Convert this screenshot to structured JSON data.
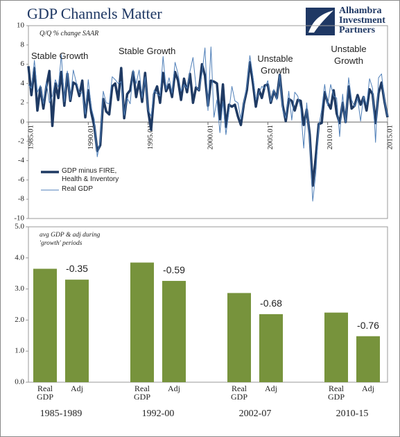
{
  "header": {
    "title": "GDP Channels Matter",
    "logo": "Alhambra Investment Partners"
  },
  "chart_data": [
    {
      "type": "line",
      "annotations": [
        "Q/Q % change SAAR",
        "Stable Growth",
        "Stable Growth",
        "Unstable Growth",
        "Unstable Growth"
      ],
      "x": [
        1985,
        1985.25,
        1985.5,
        1985.75,
        1986,
        1986.25,
        1986.5,
        1986.75,
        1987,
        1987.25,
        1987.5,
        1987.75,
        1988,
        1988.25,
        1988.5,
        1988.75,
        1989,
        1989.25,
        1989.5,
        1989.75,
        1990,
        1990.25,
        1990.5,
        1990.75,
        1991,
        1991.25,
        1991.5,
        1991.75,
        1992,
        1992.25,
        1992.5,
        1992.75,
        1993,
        1993.25,
        1993.5,
        1993.75,
        1994,
        1994.25,
        1994.5,
        1994.75,
        1995,
        1995.25,
        1995.5,
        1995.75,
        1996,
        1996.25,
        1996.5,
        1996.75,
        1997,
        1997.25,
        1997.5,
        1997.75,
        1998,
        1998.25,
        1998.5,
        1998.75,
        1999,
        1999.25,
        1999.5,
        1999.75,
        2000,
        2000.25,
        2000.5,
        2000.75,
        2001,
        2001.25,
        2001.5,
        2001.75,
        2002,
        2002.25,
        2002.5,
        2002.75,
        2003,
        2003.25,
        2003.5,
        2003.75,
        2004,
        2004.25,
        2004.5,
        2004.75,
        2005,
        2005.25,
        2005.5,
        2005.75,
        2006,
        2006.25,
        2006.5,
        2006.75,
        2007,
        2007.25,
        2007.5,
        2007.75,
        2008,
        2008.25,
        2008.5,
        2008.75,
        2009,
        2009.25,
        2009.5,
        2009.75,
        2010,
        2010.25,
        2010.5,
        2010.75,
        2011,
        2011.25,
        2011.5,
        2011.75,
        2012,
        2012.25,
        2012.5,
        2012.75,
        2013,
        2013.25,
        2013.5,
        2013.75,
        2014,
        2014.25,
        2014.5,
        2014.75,
        2015
      ],
      "series": [
        {
          "name": "GDP minus FIRE, Health & Inventory",
          "color": "#1f3a63",
          "values": [
            5.8,
            2.8,
            5.6,
            1.2,
            3.6,
            1.4,
            3.7,
            5.3,
            -0.4,
            4.0,
            2.5,
            5.2,
            1.7,
            5.0,
            2.2,
            4.1,
            3.9,
            2.7,
            4.3,
            0.5,
            3.3,
            1.0,
            -0.4,
            -3.0,
            -2.4,
            2.4,
            1.1,
            0.8,
            3.7,
            4.0,
            2.3,
            5.6,
            0.4,
            2.9,
            3.3,
            5.2,
            2.6,
            4.2,
            2.1,
            5.1,
            1.2,
            -0.8,
            2.9,
            3.7,
            2.0,
            5.1,
            3.2,
            3.9,
            2.6,
            5.2,
            4.3,
            2.3,
            4.5,
            3.1,
            5.0,
            2.0,
            3.6,
            3.3,
            6.0,
            4.8,
            1.7,
            4.3,
            4.2,
            4.0,
            0.3,
            3.9,
            -0.5,
            1.8,
            1.6,
            1.8,
            0.6,
            -0.3,
            1.9,
            3.3,
            6.2,
            4.1,
            1.6,
            3.4,
            2.5,
            3.8,
            3.9,
            2.0,
            3.2,
            2.5,
            4.9,
            1.7,
            0.1,
            2.4,
            2.2,
            1.2,
            2.3,
            2.2,
            -0.3,
            1.3,
            -1.3,
            -6.6,
            -3.7,
            -0.2,
            -0.1,
            3.1,
            2.0,
            1.4,
            3.3,
            0.9,
            -0.1,
            2.0,
            0.0,
            3.7,
            1.4,
            1.7,
            2.8,
            1.8,
            2.6,
            1.2,
            3.4,
            2.9,
            -0.1,
            3.0,
            4.1,
            2.1,
            0.5
          ]
        },
        {
          "name": "Real GDP",
          "color": "#4f7fb8",
          "values": [
            3.9,
            3.5,
            6.4,
            3.1,
            3.8,
            1.9,
            4.1,
            2.0,
            2.7,
            4.4,
            3.6,
            7.0,
            2.1,
            5.3,
            2.3,
            5.4,
            4.1,
            3.1,
            3.0,
            0.8,
            4.4,
            1.5,
            0.3,
            -3.6,
            -1.9,
            3.2,
            2.0,
            1.9,
            4.7,
            4.4,
            4.0,
            4.2,
            0.7,
            2.5,
            1.9,
            5.4,
            4.0,
            5.4,
            2.5,
            4.7,
            1.3,
            0.6,
            3.3,
            2.9,
            2.7,
            6.8,
            3.4,
            4.6,
            3.0,
            6.2,
            5.0,
            3.2,
            3.9,
            3.5,
            5.3,
            6.7,
            3.7,
            3.3,
            5.0,
            7.7,
            1.2,
            7.8,
            0.5,
            2.3,
            -1.1,
            2.1,
            -1.3,
            1.1,
            3.7,
            2.2,
            2.0,
            0.3,
            2.1,
            3.8,
            6.9,
            4.8,
            2.3,
            3.0,
            3.7,
            3.5,
            4.3,
            2.1,
            3.4,
            2.3,
            4.9,
            1.2,
            0.4,
            3.2,
            0.2,
            3.1,
            2.7,
            1.4,
            -2.7,
            2.0,
            -1.9,
            -8.2,
            -5.4,
            -0.5,
            1.3,
            3.9,
            1.7,
            3.9,
            2.7,
            2.5,
            -1.5,
            2.9,
            -0.1,
            4.6,
            2.3,
            1.6,
            2.5,
            0.1,
            2.7,
            1.8,
            4.5,
            3.5,
            -2.1,
            4.6,
            5.0,
            2.2,
            0.6
          ]
        }
      ],
      "xlim": [
        1985,
        2015
      ],
      "xticks": [
        {
          "value": 1985,
          "label": "1985.01"
        },
        {
          "value": 1990,
          "label": "1990.01"
        },
        {
          "value": 1995,
          "label": "1995.01"
        },
        {
          "value": 2000,
          "label": "2000.01"
        },
        {
          "value": 2005,
          "label": "2005.01"
        },
        {
          "value": 2010,
          "label": "2010.01"
        },
        {
          "value": 2015,
          "label": "2015.01"
        }
      ],
      "ylim": [
        -10,
        10
      ],
      "yticks": [
        -10,
        -8,
        -6,
        -4,
        -2,
        0,
        2,
        4,
        6,
        8,
        10
      ]
    },
    {
      "type": "bar",
      "annotation": [
        "avg GDP & adj during",
        "'growth' periods"
      ],
      "categories": [
        "Real GDP",
        "Adj",
        "Real GDP",
        "Adj",
        "Real GDP",
        "Adj",
        "Real GDP",
        "Adj"
      ],
      "groups": [
        "1985-1989",
        "1992-00",
        "2002-07",
        "2010-15"
      ],
      "values": [
        3.65,
        3.3,
        3.85,
        3.26,
        2.87,
        2.19,
        2.24,
        1.48
      ],
      "differences": [
        -0.35,
        -0.59,
        -0.68,
        -0.76
      ],
      "color": "#77933c",
      "ylim": [
        0,
        5
      ],
      "yticks": [
        {
          "value": 0,
          "label": "0.0"
        },
        {
          "value": 1,
          "label": "1.0"
        },
        {
          "value": 2,
          "label": "2.0"
        },
        {
          "value": 3,
          "label": "3.0"
        },
        {
          "value": 4,
          "label": "4.0"
        },
        {
          "value": 5,
          "label": "5.0"
        }
      ]
    }
  ]
}
